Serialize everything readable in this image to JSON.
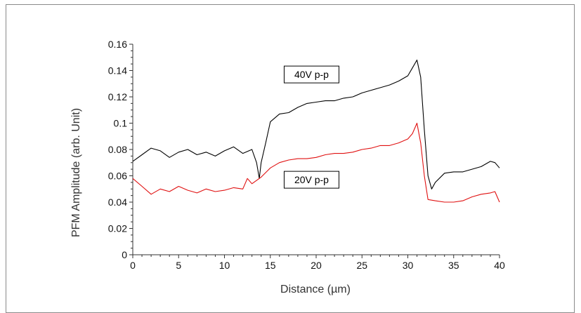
{
  "chart_data": {
    "type": "line",
    "xlabel": "Distance (µm)",
    "ylabel": "PFM Amplitude (arb. Unit)",
    "xlim": [
      0,
      40
    ],
    "ylim": [
      0,
      0.16
    ],
    "x_ticks": [
      "0",
      "5",
      "10",
      "15",
      "20",
      "25",
      "30",
      "35",
      "40"
    ],
    "y_ticks": [
      "0",
      "0.02",
      "0.04",
      "0.06",
      "0.08",
      "0.1",
      "0.12",
      "0.14",
      "0.16"
    ],
    "grid": false,
    "legend": "inline labels",
    "series": [
      {
        "name": "40V p-p",
        "color": "#000000",
        "x": [
          0,
          1,
          2,
          3,
          4,
          5,
          6,
          7,
          8,
          9,
          10,
          11,
          12,
          13,
          13.5,
          13.8,
          14,
          14.5,
          15,
          16,
          17,
          18,
          19,
          20,
          21,
          22,
          23,
          24,
          25,
          26,
          27,
          28,
          29,
          30,
          30.5,
          31,
          31.4,
          31.8,
          32.2,
          32.6,
          33,
          34,
          35,
          36,
          37,
          38,
          39,
          39.5,
          40
        ],
        "y": [
          0.071,
          0.076,
          0.081,
          0.079,
          0.074,
          0.078,
          0.08,
          0.076,
          0.078,
          0.075,
          0.079,
          0.082,
          0.077,
          0.08,
          0.07,
          0.058,
          0.07,
          0.085,
          0.101,
          0.107,
          0.108,
          0.112,
          0.115,
          0.116,
          0.117,
          0.117,
          0.119,
          0.12,
          0.123,
          0.125,
          0.127,
          0.129,
          0.132,
          0.136,
          0.142,
          0.148,
          0.135,
          0.095,
          0.06,
          0.05,
          0.055,
          0.062,
          0.063,
          0.063,
          0.065,
          0.067,
          0.071,
          0.07,
          0.066
        ]
      },
      {
        "name": "20V p-p",
        "color": "#e01010",
        "x": [
          0,
          1,
          2,
          3,
          4,
          5,
          6,
          7,
          8,
          9,
          10,
          11,
          12,
          12.5,
          13,
          14,
          15,
          16,
          17,
          18,
          19,
          20,
          21,
          22,
          23,
          24,
          25,
          26,
          27,
          28,
          29,
          30,
          30.5,
          31,
          31.4,
          31.8,
          32.2,
          33,
          34,
          35,
          36,
          37,
          38,
          39,
          39.5,
          40
        ],
        "y": [
          0.058,
          0.052,
          0.046,
          0.05,
          0.048,
          0.052,
          0.049,
          0.047,
          0.05,
          0.048,
          0.049,
          0.051,
          0.05,
          0.058,
          0.054,
          0.059,
          0.066,
          0.07,
          0.072,
          0.073,
          0.073,
          0.074,
          0.076,
          0.077,
          0.077,
          0.078,
          0.08,
          0.081,
          0.083,
          0.083,
          0.085,
          0.088,
          0.092,
          0.1,
          0.085,
          0.06,
          0.042,
          0.041,
          0.04,
          0.04,
          0.041,
          0.044,
          0.046,
          0.047,
          0.048,
          0.04
        ]
      }
    ],
    "annotations": [
      {
        "text": "40V p-p",
        "x": 19.5,
        "y": 0.137
      },
      {
        "text": "20V p-p",
        "x": 19.5,
        "y": 0.057
      }
    ]
  }
}
